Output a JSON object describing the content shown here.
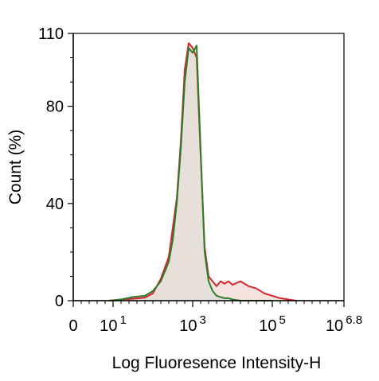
{
  "chart_data": {
    "type": "area",
    "title": "",
    "xlabel": "Log Fluoresence Intensity-H",
    "ylabel": "Count  (%)",
    "x_scale": "log",
    "xlim": [
      0,
      6.8
    ],
    "ylim": [
      0,
      110
    ],
    "x_ticks": [
      {
        "value": 0,
        "base": "0",
        "exp": ""
      },
      {
        "value": 1,
        "base": "10",
        "exp": "1"
      },
      {
        "value": 3,
        "base": "10",
        "exp": "3"
      },
      {
        "value": 5,
        "base": "10",
        "exp": "5"
      },
      {
        "value": 6.8,
        "base": "10",
        "exp": "6.8"
      }
    ],
    "y_ticks": [
      {
        "value": 0,
        "label": "0"
      },
      {
        "value": 40,
        "label": "40"
      },
      {
        "value": 80,
        "label": "80"
      },
      {
        "value": 110,
        "label": "110"
      }
    ],
    "grid": false,
    "legend": "none",
    "series": [
      {
        "color": "#d8232a",
        "fill": "#f3d8d4",
        "x": [
          0.9,
          1.2,
          1.5,
          1.8,
          2.0,
          2.2,
          2.4,
          2.5,
          2.6,
          2.7,
          2.8,
          2.9,
          3.0,
          3.1,
          3.2,
          3.3,
          3.4,
          3.5,
          3.6,
          3.7,
          3.8,
          3.9,
          4.0,
          4.2,
          4.4,
          4.6,
          4.8,
          5.0,
          5.2,
          5.4,
          5.6
        ],
        "values": [
          0,
          0.5,
          0.8,
          1.2,
          3,
          9,
          18,
          30,
          42,
          65,
          95,
          106,
          104,
          100,
          60,
          22,
          10,
          8,
          6,
          8,
          7,
          8,
          6.5,
          8,
          6,
          5,
          3,
          2,
          1,
          0.5,
          0
        ]
      },
      {
        "color": "#2a7e2a",
        "fill": "#e2ddd8",
        "x": [
          0.9,
          1.2,
          1.5,
          1.8,
          2.0,
          2.2,
          2.4,
          2.5,
          2.6,
          2.7,
          2.8,
          2.9,
          3.0,
          3.1,
          3.2,
          3.3,
          3.4,
          3.5,
          3.6,
          3.7,
          3.8,
          3.9,
          4.0,
          4.2,
          4.4,
          4.6,
          4.8,
          5.0
        ],
        "values": [
          0,
          0.5,
          1.5,
          2,
          4,
          8,
          16,
          25,
          40,
          62,
          90,
          104,
          102,
          105,
          62,
          20,
          8,
          4,
          2,
          1.5,
          1,
          1,
          0.5,
          0,
          0,
          0,
          0,
          0
        ]
      }
    ]
  }
}
